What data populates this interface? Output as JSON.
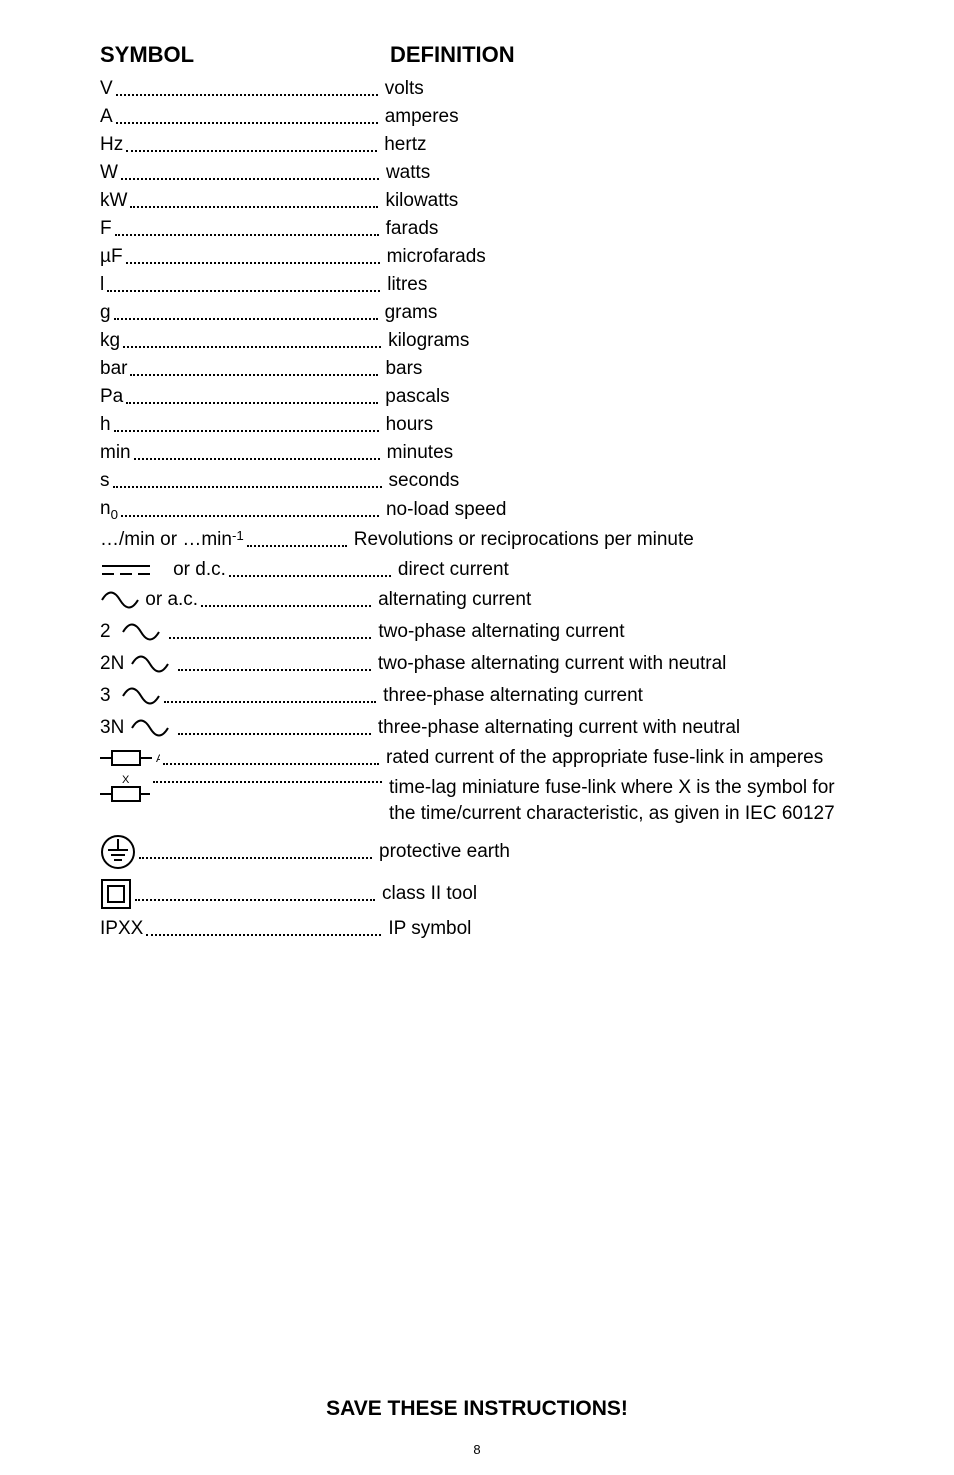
{
  "headers": {
    "symbol": "SYMBOL",
    "definition": "DEFINITION"
  },
  "entries": [
    {
      "symbol_text": "V",
      "dots_width": 262,
      "definition": "volts"
    },
    {
      "symbol_text": "A",
      "dots_width": 262,
      "definition": "amperes"
    },
    {
      "symbol_text": "Hz",
      "dots_width": 251,
      "definition": "hertz"
    },
    {
      "symbol_text": "W",
      "dots_width": 258,
      "definition": "watts"
    },
    {
      "symbol_text": "kW",
      "dots_width": 248,
      "definition": "kilowatts"
    },
    {
      "symbol_text": "F",
      "dots_width": 264,
      "definition": "farads"
    },
    {
      "symbol_text": "µF",
      "dots_width": 254,
      "definition": "microfarads"
    },
    {
      "symbol_text": "l",
      "dots_width": 273,
      "definition": "litres"
    },
    {
      "symbol_text": "g",
      "dots_width": 264,
      "definition": "grams"
    },
    {
      "symbol_text": "kg",
      "dots_width": 258,
      "definition": "kilograms"
    },
    {
      "symbol_text": "bar",
      "dots_width": 248,
      "definition": "bars"
    },
    {
      "symbol_text": "Pa",
      "dots_width": 252,
      "definition": "pascals"
    },
    {
      "symbol_text": "h",
      "dots_width": 265,
      "definition": "hours"
    },
    {
      "symbol_text": "min",
      "dots_width": 246,
      "definition": "minutes"
    },
    {
      "symbol_text": "s",
      "dots_width": 269,
      "definition": "seconds"
    },
    {
      "symbol_html": "n<sub>0</sub>",
      "dots_width": 258,
      "definition": "no-load speed"
    },
    {
      "symbol_text": "…/min  or  …min",
      "symbol_suffix_html": "<sup>-1</sup>",
      "dots_width": 100,
      "definition": "Revolutions or reciprocations per minute"
    },
    {
      "icon": "dc",
      "symbol_after_icon": "    or d.c.",
      "dots_width": 162,
      "definition": "direct current"
    },
    {
      "icon": "ac",
      "symbol_after_icon": " or a.c.",
      "dots_width": 170,
      "definition": "alternating current"
    },
    {
      "symbol_text": "2  ",
      "icon": "ac",
      "symbol_after_icon": " ",
      "dots_width": 202,
      "definition": "two-phase alternating current"
    },
    {
      "symbol_text": "2N ",
      "icon": "ac",
      "symbol_after_icon": " ",
      "dots_width": 193,
      "definition": "two-phase alternating current with neutral"
    },
    {
      "symbol_text": "3  ",
      "icon": "ac",
      "symbol_after_icon": "",
      "dots_width": 212,
      "definition": "three-phase alternating current"
    },
    {
      "symbol_text": "3N ",
      "icon": "ac",
      "symbol_after_icon": " ",
      "dots_width": 193,
      "definition": "three-phase alternating current with neutral"
    },
    {
      "icon": "fuse-a",
      "dots_width": 216,
      "definition": "rated current of the appropriate fuse-link in amperes"
    },
    {
      "icon": "fuse-x",
      "dots_width": 229,
      "wrap": true,
      "definition": "time-lag miniature fuse-link where X is the symbol for the time/current characteristic, as given in IEC 60127"
    },
    {
      "icon": "earth",
      "dots_width": 233,
      "definition": "protective earth"
    },
    {
      "icon": "class2",
      "dots_width": 240,
      "definition": "class II tool"
    },
    {
      "symbol_text": "IPXX",
      "dots_width": 235,
      "definition": "IP symbol"
    }
  ],
  "footer": "SAVE THESE INSTRUCTIONS!",
  "page_number": "8",
  "styles": {
    "font_family": "Arial, Helvetica, sans-serif",
    "background_color": "#ffffff",
    "text_color": "#000000",
    "header_fontsize": 22,
    "body_fontsize": 19,
    "footer_fontsize": 21,
    "pagenum_fontsize": 13,
    "icon_stroke": "#000000",
    "icon_stroke_width": 2
  }
}
